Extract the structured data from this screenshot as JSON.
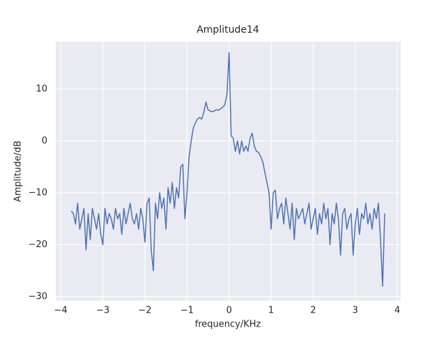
{
  "chart_data": {
    "type": "line",
    "title": "Amplitude14",
    "x_label": "frequency/KHz",
    "y_label": "Amplitude/dB",
    "x": [
      -3.75,
      -3.7,
      -3.65,
      -3.6,
      -3.55,
      -3.5,
      -3.45,
      -3.4,
      -3.35,
      -3.3,
      -3.25,
      -3.2,
      -3.15,
      -3.1,
      -3.05,
      -3,
      -2.95,
      -2.9,
      -2.85,
      -2.8,
      -2.75,
      -2.7,
      -2.65,
      -2.6,
      -2.55,
      -2.5,
      -2.45,
      -2.4,
      -2.35,
      -2.3,
      -2.25,
      -2.2,
      -2.15,
      -2.1,
      -2.05,
      -2,
      -1.95,
      -1.9,
      -1.85,
      -1.8,
      -1.75,
      -1.7,
      -1.65,
      -1.6,
      -1.55,
      -1.5,
      -1.45,
      -1.4,
      -1.35,
      -1.3,
      -1.25,
      -1.2,
      -1.15,
      -1.1,
      -1.05,
      -1,
      -0.95,
      -0.9,
      -0.85,
      -0.8,
      -0.75,
      -0.7,
      -0.65,
      -0.6,
      -0.55,
      -0.5,
      -0.45,
      -0.4,
      -0.35,
      -0.3,
      -0.25,
      -0.2,
      -0.15,
      -0.1,
      -0.05,
      0,
      0.05,
      0.1,
      0.15,
      0.2,
      0.25,
      0.3,
      0.35,
      0.4,
      0.45,
      0.5,
      0.55,
      0.6,
      0.65,
      0.7,
      0.75,
      0.8,
      0.85,
      0.9,
      0.95,
      1,
      1.05,
      1.1,
      1.15,
      1.2,
      1.25,
      1.3,
      1.35,
      1.4,
      1.45,
      1.5,
      1.55,
      1.6,
      1.65,
      1.7,
      1.75,
      1.8,
      1.85,
      1.9,
      1.95,
      2,
      2.05,
      2.1,
      2.15,
      2.2,
      2.25,
      2.3,
      2.35,
      2.4,
      2.45,
      2.5,
      2.55,
      2.6,
      2.65,
      2.7,
      2.75,
      2.8,
      2.85,
      2.9,
      2.95,
      3,
      3.05,
      3.1,
      3.15,
      3.2,
      3.25,
      3.3,
      3.35,
      3.4,
      3.45,
      3.5,
      3.55,
      3.6,
      3.65,
      3.7
    ],
    "series": [
      {
        "color": "#4c72b0",
        "values": [
          -13.5,
          -14,
          -16,
          -12,
          -17,
          -15,
          -13,
          -21,
          -14,
          -19,
          -13,
          -15,
          -17,
          -14,
          -18,
          -20,
          -13,
          -16,
          -14,
          -15,
          -17,
          -13,
          -15,
          -14,
          -18,
          -13,
          -16,
          -14,
          -12,
          -15,
          -16,
          -14,
          -17,
          -13,
          -15,
          -19.5,
          -12,
          -11,
          -21,
          -25,
          -12,
          -15,
          -10,
          -13,
          -11,
          -17,
          -9,
          -12,
          -8,
          -13,
          -9,
          -11,
          -5,
          -4.5,
          -15,
          -10,
          -3,
          0,
          2.5,
          3.5,
          4.2,
          4.5,
          4.2,
          5.5,
          7.5,
          6,
          5.8,
          5.6,
          5.8,
          6,
          5.9,
          6.2,
          6.5,
          7,
          9,
          17,
          1,
          0.5,
          -2,
          0,
          -2.5,
          0,
          -2,
          -1,
          -2,
          0.5,
          1.5,
          -1,
          -2,
          -2.2,
          -3,
          -4,
          -6,
          -8,
          -10,
          -17,
          -10,
          -9.5,
          -15,
          -13,
          -12,
          -16,
          -11,
          -14,
          -17,
          -12,
          -19,
          -13,
          -15,
          -14,
          -13,
          -16,
          -14,
          -12,
          -17,
          -15,
          -13,
          -18,
          -14,
          -16,
          -12,
          -15,
          -13,
          -20,
          -14,
          -16,
          -12,
          -15,
          -22,
          -14,
          -13,
          -17,
          -15,
          -14,
          -22,
          -16,
          -13,
          -18,
          -14,
          -15,
          -12,
          -16,
          -14,
          -17,
          -13,
          -15,
          -12,
          -19,
          -28,
          -14
        ]
      }
    ],
    "xlim": [
      -4.12,
      4.08
    ],
    "ylim": [
      -30.8,
      19.1
    ],
    "xticks": [
      {
        "value": -4,
        "label": "−4"
      },
      {
        "value": -3,
        "label": "−3"
      },
      {
        "value": -2,
        "label": "−2"
      },
      {
        "value": -1,
        "label": "−1"
      },
      0,
      1,
      2,
      3,
      4
    ],
    "yticks": [
      {
        "value": -30,
        "label": "−30"
      },
      {
        "value": -20,
        "label": "−20"
      },
      {
        "value": -10,
        "label": "−10"
      },
      0,
      10
    ],
    "grid": true
  }
}
